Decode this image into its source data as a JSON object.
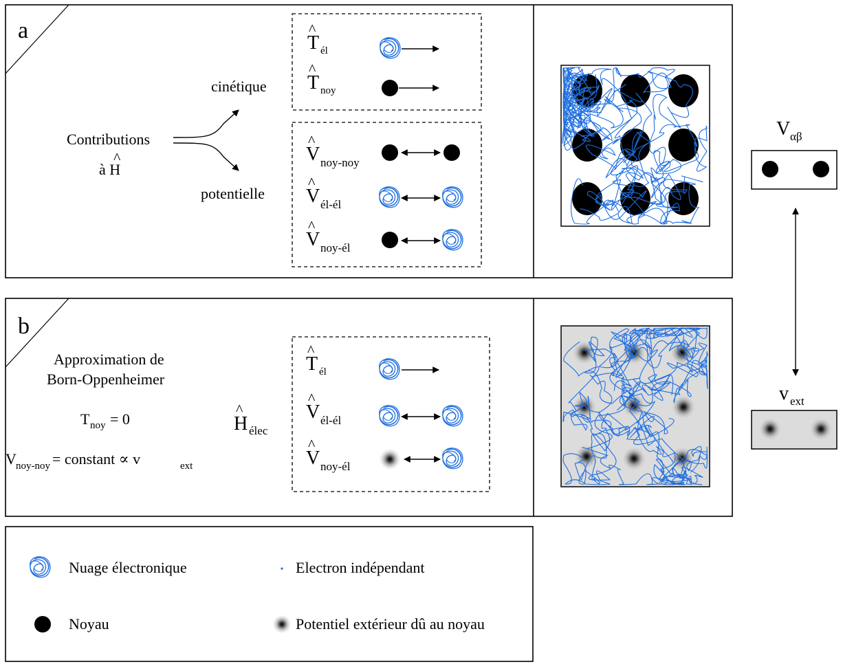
{
  "panel_a": {
    "label": "a",
    "contributions": "Contributions",
    "a_h_prefix": "à H",
    "cinetique": "cinétique",
    "potentielle": "potentielle",
    "terms": [
      {
        "base": "T",
        "sub": "él"
      },
      {
        "base": "T",
        "sub": "noy"
      },
      {
        "base": "V",
        "sub": "noy-noy"
      },
      {
        "base": "V",
        "sub": "él-él"
      },
      {
        "base": "V",
        "sub": "noy-él"
      }
    ]
  },
  "panel_b": {
    "label": "b",
    "approx_line1": "Approximation de",
    "approx_line2": "Born-Oppenheimer",
    "tnoy_base": "T",
    "tnoy_sub": "noy",
    "tnoy_rest": " = 0",
    "vnoy_base": "V",
    "vnoy_sub": "noy-noy",
    "vnoy_rest": " = constant ∝ v",
    "vnoy_ext_sub": "ext",
    "helec_base": "H",
    "helec_sub": "élec",
    "terms": [
      {
        "base": "T",
        "sub": "él"
      },
      {
        "base": "V",
        "sub": "él-él"
      },
      {
        "base": "V",
        "sub": "noy-él"
      }
    ]
  },
  "side": {
    "top_base": "V",
    "top_sub": "αβ",
    "bottom_base": "v",
    "bottom_sub": "ext"
  },
  "legend": {
    "cloud": "Nuage électronique",
    "electron": "Electron indépendant",
    "nucleus": "Noyau",
    "potential": "Potentiel extérieur dû au noyau"
  },
  "colors": {
    "cloud": "#1f6fe0",
    "nucleus": "#000000",
    "grey_bg": "#dcdcdc"
  }
}
